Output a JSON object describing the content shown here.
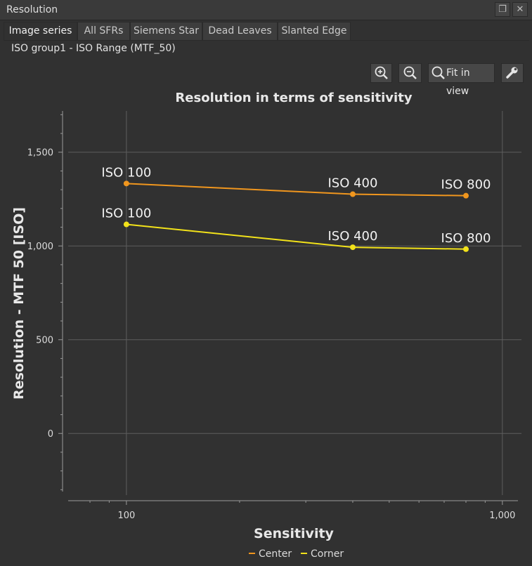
{
  "window": {
    "title": "Resolution"
  },
  "tabs": [
    {
      "label": "Image series",
      "active": true
    },
    {
      "label": "All SFRs"
    },
    {
      "label": "Siemens Star"
    },
    {
      "label": "Dead Leaves"
    },
    {
      "label": "Slanted Edge"
    }
  ],
  "subtitle": "ISO group1 - ISO Range (MTF_50)",
  "toolbar": {
    "zoom_in_icon": "zoom-in-icon",
    "zoom_out_icon": "zoom-out-icon",
    "fit_label": "Fit in view",
    "settings_icon": "wrench-icon"
  },
  "colors": {
    "center": "#f0961e",
    "corner": "#f2e21a",
    "background": "#313131"
  },
  "chart_data": {
    "type": "line",
    "title": "Resolution in terms of sensitivity",
    "xlabel": "Sensitivity",
    "ylabel": "Resolution - MTF 50 [ISO]",
    "xscale": "log",
    "xlim": [
      70,
      1100
    ],
    "ylim": [
      -310,
      1720
    ],
    "xticks": [
      {
        "value": 100,
        "label": "100"
      },
      {
        "value": 1000,
        "label": "1,000"
      }
    ],
    "yticks": [
      {
        "value": 0,
        "label": "0"
      },
      {
        "value": 500,
        "label": "500"
      },
      {
        "value": 1000,
        "label": "1,000"
      },
      {
        "value": 1500,
        "label": "1,500"
      }
    ],
    "grid": true,
    "legend_position": "bottom",
    "series": [
      {
        "name": "Center",
        "color": "#f0961e",
        "x": [
          100,
          400,
          800
        ],
        "y": [
          1333,
          1276,
          1268
        ],
        "labels": [
          "ISO 100",
          "ISO 400",
          "ISO 800"
        ]
      },
      {
        "name": "Corner",
        "color": "#f2e21a",
        "x": [
          100,
          400,
          800
        ],
        "y": [
          1115,
          993,
          983
        ],
        "labels": [
          "ISO 100",
          "ISO 400",
          "ISO 800"
        ]
      }
    ]
  }
}
